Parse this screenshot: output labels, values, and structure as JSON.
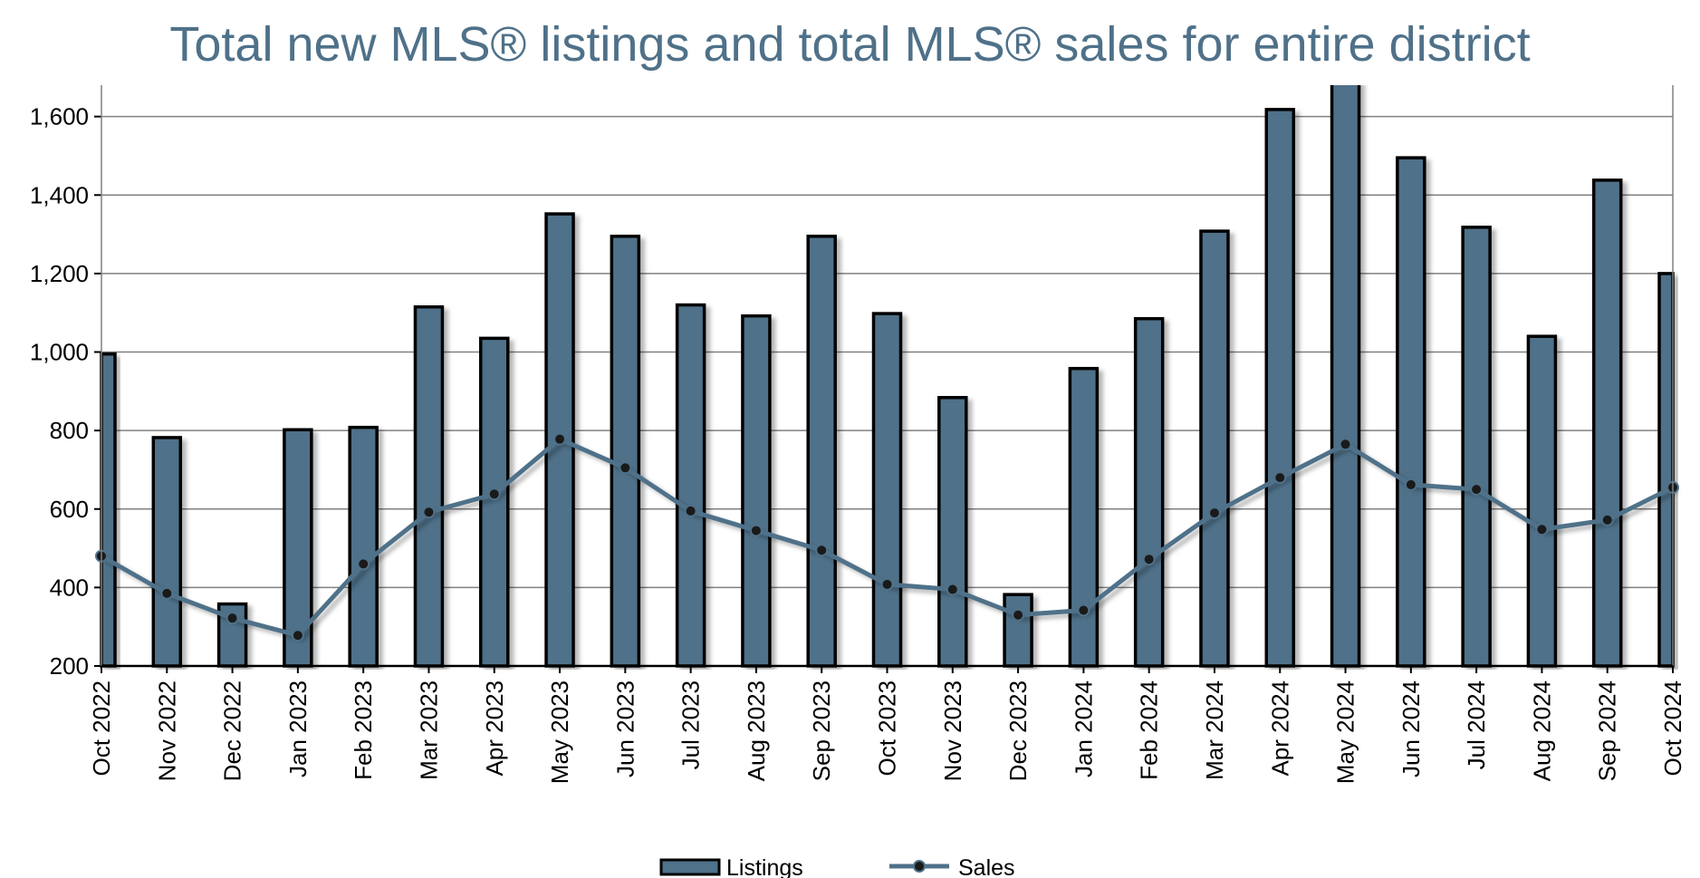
{
  "chart_data": {
    "type": "bar",
    "title": "Total new MLS® listings and total MLS® sales for entire district",
    "xlabel": "",
    "ylabel": "",
    "ylim": [
      200,
      1680
    ],
    "yticks": [
      200,
      400,
      600,
      800,
      1000,
      1200,
      1400,
      1600
    ],
    "ytick_labels": [
      "200",
      "400",
      "600",
      "800",
      "1,000",
      "1,200",
      "1,400",
      "1,600"
    ],
    "categories": [
      "Oct 2022",
      "Nov 2022",
      "Dec 2022",
      "Jan 2023",
      "Feb 2023",
      "Mar 2023",
      "Apr 2023",
      "May 2023",
      "Jun 2023",
      "Jul 2023",
      "Aug 2023",
      "Sep 2023",
      "Oct 2023",
      "Nov 2023",
      "Dec 2023",
      "Jan 2024",
      "Feb 2024",
      "Mar 2024",
      "Apr 2024",
      "May 2024",
      "Jun 2024",
      "Jul 2024",
      "Aug 2024",
      "Sep 2024",
      "Oct 2024"
    ],
    "series": [
      {
        "name": "Listings",
        "type": "bar",
        "color": "#4f7189",
        "values": [
          995,
          782,
          358,
          802,
          808,
          1115,
          1035,
          1352,
          1295,
          1120,
          1092,
          1295,
          1098,
          884,
          382,
          958,
          1085,
          1308,
          1618,
          1700,
          1495,
          1318,
          1040,
          1438,
          1200
        ]
      },
      {
        "name": "Sales",
        "type": "line",
        "color": "#4f7189",
        "values": [
          480,
          385,
          322,
          278,
          460,
          592,
          638,
          778,
          705,
          595,
          545,
          495,
          408,
          395,
          330,
          342,
          472,
          590,
          680,
          765,
          662,
          650,
          548,
          572,
          655
        ]
      }
    ],
    "legend": [
      "Listings",
      "Sales"
    ],
    "legend_position": "bottom-center",
    "grid": true
  }
}
